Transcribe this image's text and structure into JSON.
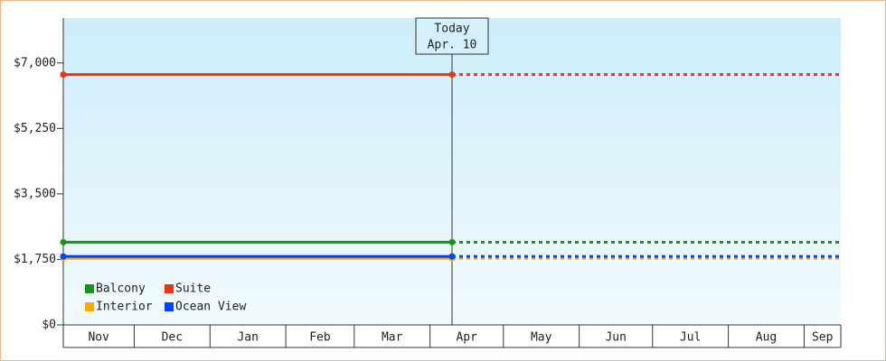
{
  "chart_data": {
    "type": "line",
    "categories": [
      "Nov",
      "Dec",
      "Jan",
      "Feb",
      "Mar",
      "Apr",
      "May",
      "Jun",
      "Jul",
      "Aug",
      "Sep"
    ],
    "ylim": [
      0,
      8200
    ],
    "yticks": [
      {
        "value": 0,
        "label": "$0"
      },
      {
        "value": 1750,
        "label": "$1,750"
      },
      {
        "value": 3500,
        "label": "$3,500"
      },
      {
        "value": 5250,
        "label": "$5,250"
      },
      {
        "value": 7000,
        "label": "$7,000"
      }
    ],
    "annotation": {
      "label": "Today",
      "date": "Apr. 10"
    },
    "series": [
      {
        "name": "Balcony",
        "color": "#119911",
        "value": 2210
      },
      {
        "name": "Suite",
        "color": "#ee3311",
        "value": 6690
      },
      {
        "name": "Interior",
        "color": "#ffaa00",
        "value": 1780
      },
      {
        "name": "Ocean View",
        "color": "#0044ff",
        "value": 1830
      }
    ]
  }
}
